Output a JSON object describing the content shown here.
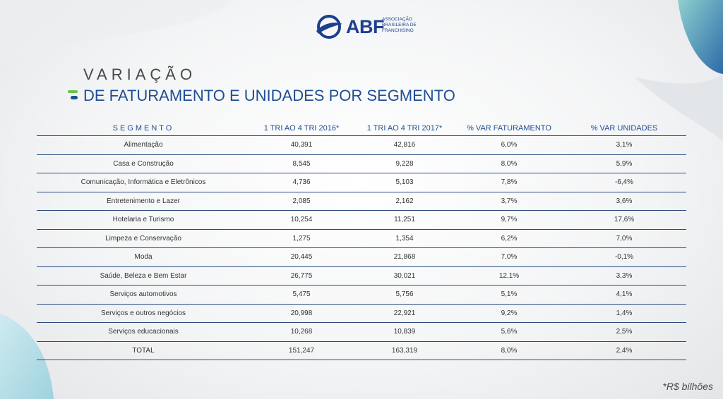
{
  "logo": {
    "name": "ABF",
    "subtitle_lines": [
      "ASSOCIAÇÃO",
      "BRASILEIRA DE",
      "FRANCHISING"
    ]
  },
  "title": {
    "line1": "VARIAÇÃO",
    "line2": "DE FATURAMENTO E UNIDADES POR SEGMENTO"
  },
  "table": {
    "headers": [
      "SEGMENTO",
      "1 TRI AO 4 TRI 2016*",
      "1 TRI AO 4 TRI 2017*",
      "% VAR FATURAMENTO",
      "% VAR UNIDADES"
    ],
    "rows": [
      [
        "Alimentação",
        "40,391",
        "42,816",
        "6,0%",
        "3,1%"
      ],
      [
        "Casa e Construção",
        "8,545",
        "9,228",
        "8,0%",
        "5,9%"
      ],
      [
        "Comunicação, Informática e Eletrônicos",
        "4,736",
        "5,103",
        "7,8%",
        "-6,4%"
      ],
      [
        "Entretenimento e Lazer",
        "2,085",
        "2,162",
        "3,7%",
        "3,6%"
      ],
      [
        "Hotelaria e Turismo",
        "10,254",
        "11,251",
        "9,7%",
        "17,6%"
      ],
      [
        "Limpeza e Conservação",
        "1,275",
        "1,354",
        "6,2%",
        "7,0%"
      ],
      [
        "Moda",
        "20,445",
        "21,868",
        "7,0%",
        "-0,1%"
      ],
      [
        "Saúde, Beleza e Bem Estar",
        "26,775",
        "30,021",
        "12,1%",
        "3,3%"
      ],
      [
        "Serviços automotivos",
        "5,475",
        "5,756",
        "5,1%",
        "4,1%"
      ],
      [
        "Serviços e outros negócios",
        "20,998",
        "22,921",
        "9,2%",
        "1,4%"
      ],
      [
        "Serviços educacionais",
        "10,268",
        "10,839",
        "5,6%",
        "2,5%"
      ],
      [
        "TOTAL",
        "151,247",
        "163,319",
        "8,0%",
        "2,4%"
      ]
    ]
  },
  "footnote": "*R$ bilhões",
  "colors": {
    "brand_blue": "#1f4e94",
    "accent_green": "#6cc24a",
    "accent_teal": "#2aa5a0"
  }
}
